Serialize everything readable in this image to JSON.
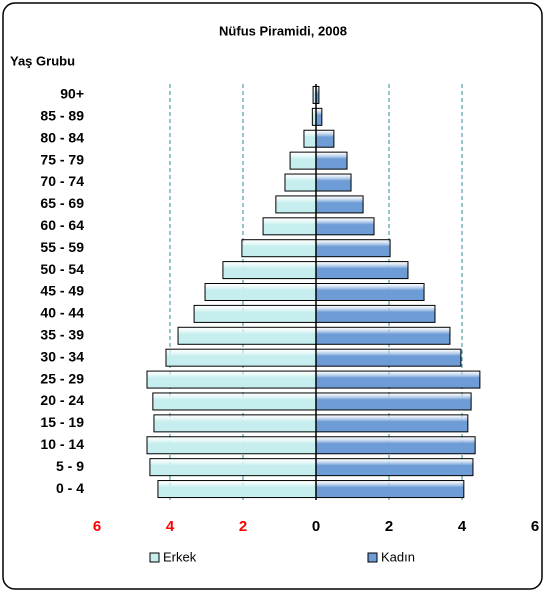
{
  "chart_data": {
    "type": "pyramid",
    "title": "Nüfus Piramidi, 2008",
    "y_axis_label": "Yaş Grubu",
    "categories": [
      "90+",
      "85 - 89",
      "80 - 84",
      "75 - 79",
      "70 - 74",
      "65 - 69",
      "60 - 64",
      "55 - 59",
      "50 - 54",
      "45 - 49",
      "40 - 44",
      "35 - 39",
      "30 - 34",
      "25 - 29",
      "20 - 24",
      "15 - 19",
      "10 - 14",
      "5 - 9",
      "0 - 4"
    ],
    "series": [
      {
        "name": "Erkek",
        "color": "#c6eeee",
        "values": [
          -0.08,
          -0.1,
          -0.33,
          -0.71,
          -0.85,
          -1.1,
          -1.45,
          -2.03,
          -2.55,
          -3.04,
          -3.34,
          -3.78,
          -4.11,
          -4.63,
          -4.47,
          -4.44,
          -4.63,
          -4.55,
          -4.33
        ]
      },
      {
        "name": "Kadın",
        "color": "#6d9cd6",
        "values": [
          0.08,
          0.16,
          0.49,
          0.85,
          0.96,
          1.29,
          1.59,
          2.03,
          2.52,
          2.96,
          3.26,
          3.67,
          3.97,
          4.49,
          4.25,
          4.16,
          4.36,
          4.3,
          4.05
        ]
      }
    ],
    "xlim": [
      -6,
      6
    ],
    "xticks": [
      {
        "value": -6,
        "label": "6"
      },
      {
        "value": -4,
        "label": "4"
      },
      {
        "value": -2,
        "label": "2"
      },
      0,
      2,
      4,
      6
    ],
    "grid": true,
    "legend": "bottom"
  }
}
